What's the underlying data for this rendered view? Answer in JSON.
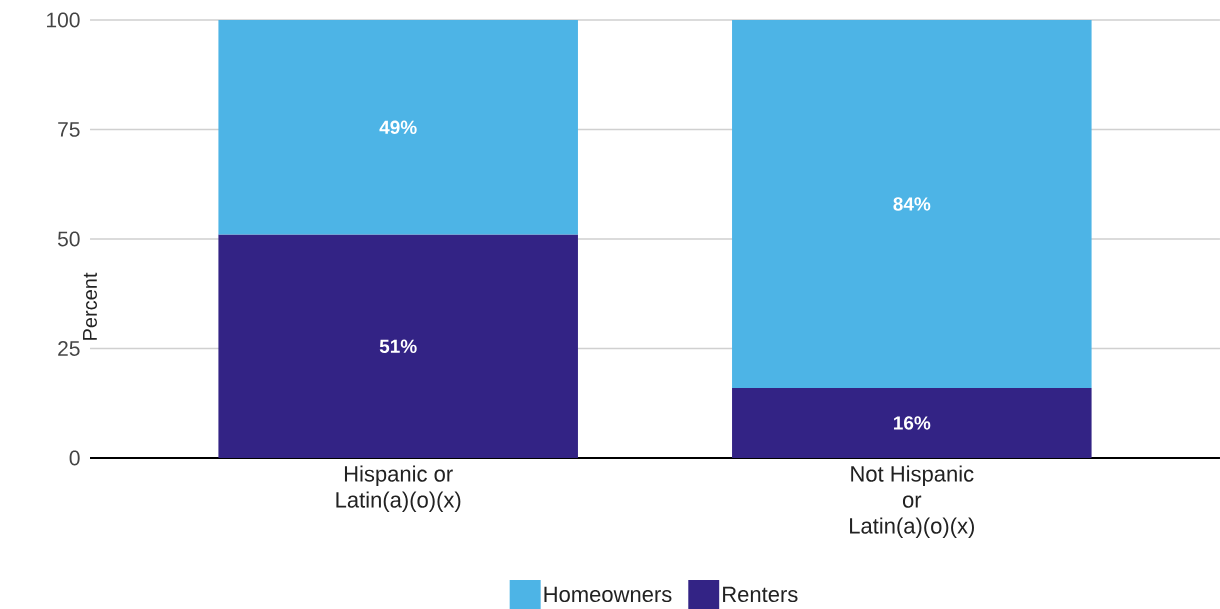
{
  "chart_data": {
    "type": "bar",
    "stacked": true,
    "categories": [
      "Hispanic or Latin(a)(o)(x)",
      "Not Hispanic or Latin(a)(o)(x)"
    ],
    "series": [
      {
        "name": "Renters",
        "color": "#332385",
        "values": [
          51,
          16
        ],
        "value_labels": [
          "51%",
          "16%"
        ]
      },
      {
        "name": "Homeowners",
        "color": "#4db4e6",
        "values": [
          49,
          84
        ],
        "value_labels": [
          "49%",
          "84%"
        ]
      }
    ],
    "ylabel": "Percent",
    "ylim": [
      0,
      100
    ],
    "yticks": [
      0,
      25,
      50,
      75,
      100
    ],
    "grid": "y",
    "legend": "bottom"
  }
}
